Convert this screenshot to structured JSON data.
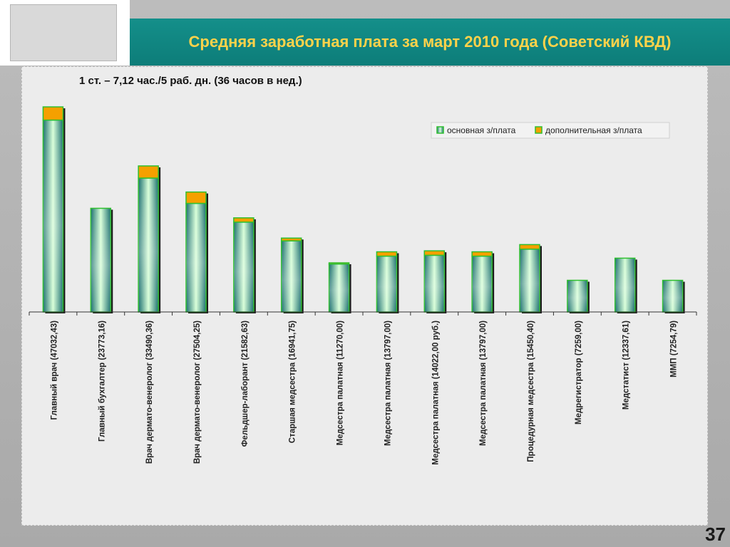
{
  "header": {
    "title": "Средняя заработная плата за март 2010 года (Советский КВД)"
  },
  "page_number": "37",
  "colors": {
    "header_teal": "#0f8782",
    "title_yellow": "#ffd24a",
    "base_bar_dark": "#1a6f6f",
    "base_bar_light": "#d8ffd8",
    "extra_orange": "#f5a000",
    "bar_outline": "#2fbf2f"
  },
  "chart_data": {
    "type": "bar",
    "stacked": true,
    "subtitle": "1 ст. – 7,12 час./5 раб. дн. (36 часов в нед.)",
    "categories": [
      "Главный врач (47032,43)",
      "Главный бухгалтер (23773,16)",
      "Врач дермато-венеролог (33490,36)",
      "Врач дермато-венеролог (27504,25)",
      "Фельдшер-лаборант (21582,63)",
      "Старшая медсестра (16941,75)",
      "Медсестра палатная (11270,00)",
      "Медсестра палатная (13797,00)",
      "Медсестра палатная (14022,00 руб.)",
      "Медсестра палатная (13797,00)",
      "Процедурная медсестра (15450,40)",
      "Медрегистратор (7259,00)",
      "Медстатист (12337,61)",
      "ММП (7254,79)"
    ],
    "series": [
      {
        "name": "основная з/плата",
        "values": [
          44000,
          23773,
          30700,
          24900,
          20600,
          16300,
          11000,
          12800,
          13000,
          12800,
          14400,
          7259,
          12338,
          7255
        ]
      },
      {
        "name": "дополнительная з/плата",
        "values": [
          3032,
          0,
          2790,
          2604,
          983,
          642,
          270,
          997,
          1022,
          997,
          1050,
          0,
          0,
          0
        ]
      }
    ],
    "ylim": [
      0,
      49000
    ],
    "grid": false,
    "legend": {
      "position": "top-right"
    }
  }
}
